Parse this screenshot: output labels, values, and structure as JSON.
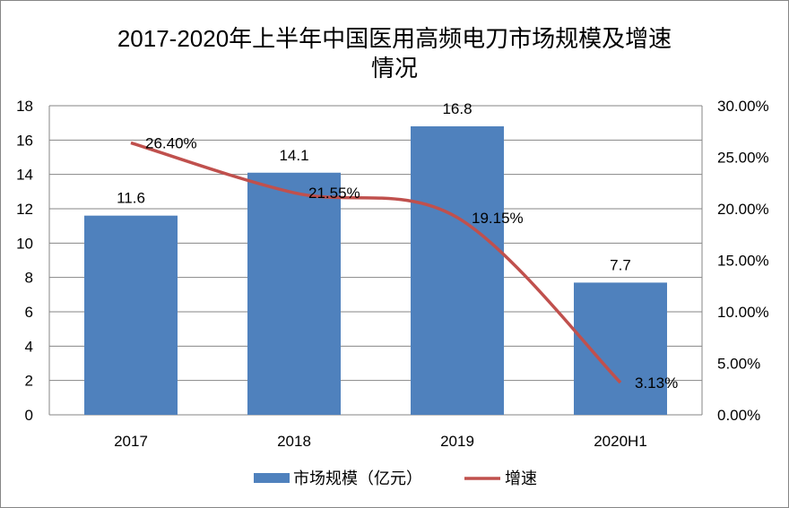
{
  "chart_data": {
    "type": "bar+line",
    "title_line1": "2017-2020年上半年中国医用高频电刀市场规模及增速",
    "title_line2": "情况",
    "categories": [
      "2017",
      "2018",
      "2019",
      "2020H1"
    ],
    "series": [
      {
        "name": "市场规模（亿元）",
        "type": "bar",
        "axis": "left",
        "values": [
          11.6,
          14.1,
          16.8,
          7.7
        ],
        "labels": [
          "11.6",
          "14.1",
          "16.8",
          "7.7"
        ],
        "color": "#4F81BD"
      },
      {
        "name": "增速",
        "type": "line",
        "axis": "right",
        "values": [
          26.4,
          21.55,
          19.15,
          3.13
        ],
        "labels": [
          "26.40%",
          "21.55%",
          "19.15%",
          "3.13%"
        ],
        "color": "#C0504D"
      }
    ],
    "left_axis": {
      "min": 0,
      "max": 18,
      "step": 2,
      "ticks": [
        "0",
        "2",
        "4",
        "6",
        "8",
        "10",
        "12",
        "14",
        "16",
        "18"
      ]
    },
    "right_axis": {
      "min": 0,
      "max": 30,
      "step": 5,
      "ticks": [
        "0.00%",
        "5.00%",
        "10.00%",
        "15.00%",
        "20.00%",
        "25.00%",
        "30.00%"
      ]
    },
    "grid": true,
    "legend_position": "bottom"
  }
}
